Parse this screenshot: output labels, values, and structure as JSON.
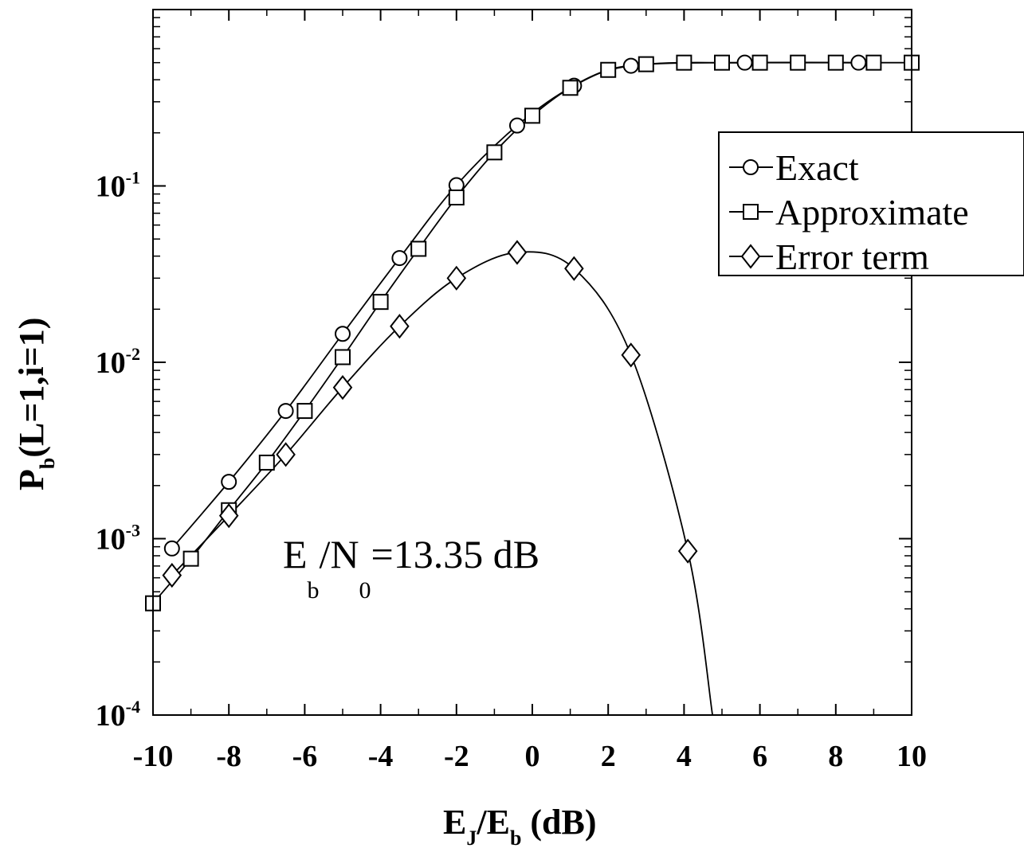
{
  "chart_data": {
    "type": "line",
    "xscale": "linear",
    "yscale": "log",
    "xlim": [
      -10,
      10
    ],
    "ylim": [
      0.0001,
      1
    ],
    "grid": false,
    "legend_position": "top-right",
    "x_ticks": [
      -10,
      -8,
      -6,
      -4,
      -2,
      0,
      2,
      4,
      6,
      8,
      10
    ],
    "x_tick_labels": [
      "-10",
      "-8",
      "-6",
      "-4",
      "-2",
      "0",
      "2",
      "4",
      "6",
      "8",
      "10"
    ],
    "y_ticks": [
      {
        "value": 0.1,
        "base": "10",
        "exp": "-1"
      },
      {
        "value": 0.01,
        "base": "10",
        "exp": "-2"
      },
      {
        "value": 0.001,
        "base": "10",
        "exp": "-3"
      },
      {
        "value": 0.0001,
        "base": "10",
        "exp": "-4"
      }
    ],
    "xlabel": {
      "p1": "E",
      "s1": "J",
      "p2": "/E",
      "s2": "b",
      "p3": " (dB)"
    },
    "ylabel": {
      "p1": "P",
      "s1": "b",
      "p2": "(L=1,i=1)"
    },
    "annotation": {
      "p1": "E",
      "s1": "b",
      "p2": "/N",
      "s2": "0",
      "p3": "=13.35 dB"
    },
    "series": [
      {
        "name": "Exact",
        "marker": "circle",
        "x": [
          -9.5,
          -8,
          -6.5,
          -5,
          -3.5,
          -2,
          -0.4,
          1.1,
          2.6,
          5.6,
          8.6
        ],
        "y": [
          0.00088,
          0.0021,
          0.0053,
          0.0145,
          0.039,
          0.101,
          0.22,
          0.37,
          0.48,
          0.5,
          0.5
        ]
      },
      {
        "name": "Approximate",
        "marker": "square",
        "x": [
          -10,
          -9,
          -8,
          -7,
          -6,
          -5,
          -4,
          -3,
          -2,
          -1,
          0,
          1,
          2,
          3,
          4,
          5,
          6,
          7,
          8,
          9,
          10
        ],
        "y": [
          0.00043,
          0.00077,
          0.00145,
          0.0027,
          0.0053,
          0.0107,
          0.022,
          0.044,
          0.086,
          0.155,
          0.25,
          0.36,
          0.455,
          0.49,
          0.5,
          0.5,
          0.5,
          0.5,
          0.5,
          0.5,
          0.5
        ]
      },
      {
        "name": "Error term",
        "marker": "diamond",
        "x": [
          -9.5,
          -8,
          -6.5,
          -5,
          -3.5,
          -2,
          -0.4,
          1.1,
          2.6,
          4.1
        ],
        "y": [
          0.00062,
          0.00135,
          0.003,
          0.0072,
          0.016,
          0.03,
          0.042,
          0.034,
          0.011,
          0.00085
        ],
        "curve_extension": [
          [
            4.75,
            0.0001
          ]
        ]
      }
    ]
  }
}
